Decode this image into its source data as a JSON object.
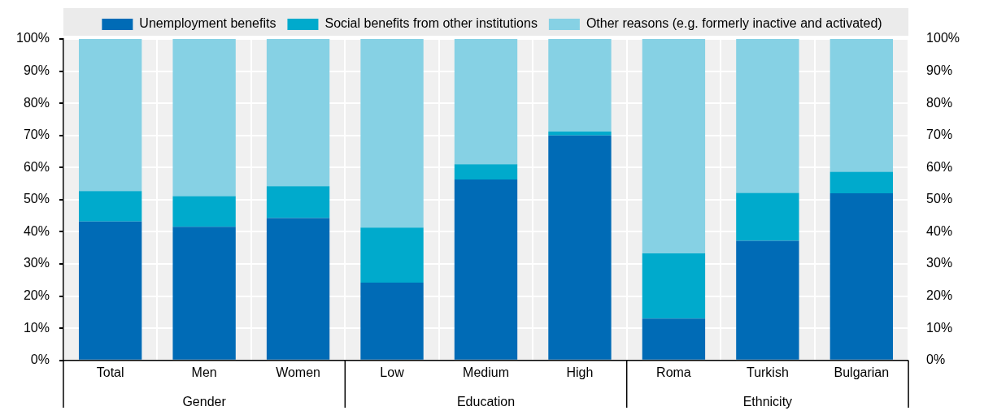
{
  "chart_data": {
    "type": "bar",
    "stacked": true,
    "categories": [
      "Total",
      "Men",
      "Women",
      "Low",
      "Medium",
      "High",
      "Roma",
      "Turkish",
      "Bulgarian"
    ],
    "series": [
      {
        "name": "Unemployment benefits",
        "color": "#006bb6",
        "values": [
          43.2,
          41.6,
          44.3,
          24.2,
          56.3,
          70.0,
          13.0,
          37.2,
          52.0
        ]
      },
      {
        "name": "Social benefits from other institutions",
        "color": "#00aacc",
        "values": [
          9.5,
          9.5,
          9.9,
          17.1,
          4.7,
          1.2,
          20.3,
          14.9,
          6.7
        ]
      },
      {
        "name": "Other reasons (e.g. formerly inactive and activated)",
        "color": "#86d1e4",
        "values": [
          47.3,
          48.9,
          45.8,
          58.7,
          39.0,
          28.8,
          66.7,
          47.9,
          41.3
        ]
      }
    ],
    "ylim": [
      0,
      100
    ],
    "yticks": [
      {
        "value": 0,
        "label": "0%"
      },
      {
        "value": 10,
        "label": "10%"
      },
      {
        "value": 20,
        "label": "20%"
      },
      {
        "value": 30,
        "label": "30%"
      },
      {
        "value": 40,
        "label": "40%"
      },
      {
        "value": 50,
        "label": "50%"
      },
      {
        "value": 60,
        "label": "60%"
      },
      {
        "value": 70,
        "label": "70%"
      },
      {
        "value": 80,
        "label": "80%"
      },
      {
        "value": 90,
        "label": "90%"
      },
      {
        "value": 100,
        "label": "100%"
      }
    ],
    "y2lim": [
      0,
      100
    ],
    "y2ticks": [
      {
        "value": 0,
        "label": "0%"
      },
      {
        "value": 10,
        "label": "10%"
      },
      {
        "value": 20,
        "label": "20%"
      },
      {
        "value": 30,
        "label": "30%"
      },
      {
        "value": 40,
        "label": "40%"
      },
      {
        "value": 50,
        "label": "50%"
      },
      {
        "value": 60,
        "label": "60%"
      },
      {
        "value": 70,
        "label": "70%"
      },
      {
        "value": 80,
        "label": "80%"
      },
      {
        "value": 90,
        "label": "90%"
      },
      {
        "value": 100,
        "label": "100%"
      }
    ],
    "annotations": [
      "Gender",
      "Education",
      "Ethnicity"
    ],
    "grid": true,
    "legend": "top"
  }
}
